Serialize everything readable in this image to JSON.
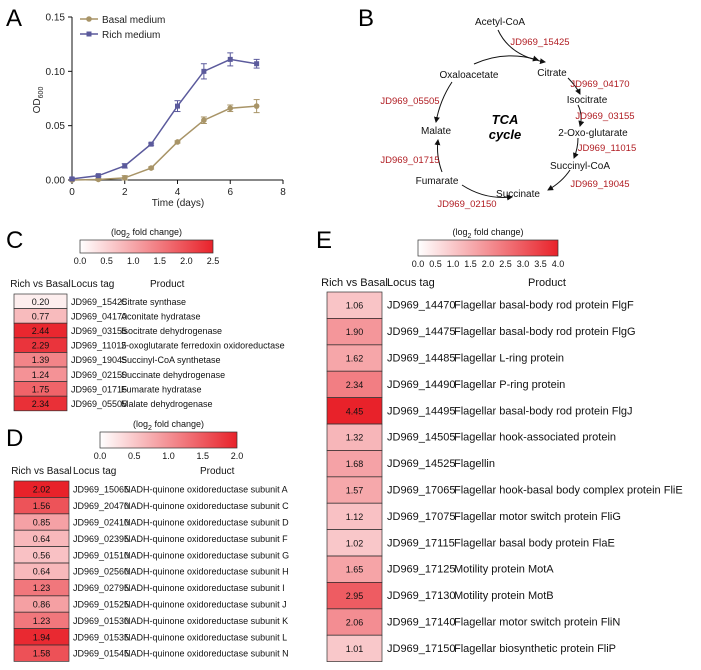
{
  "panel_labels": {
    "a": "A",
    "b": "B",
    "c": "C",
    "d": "D",
    "e": "E"
  },
  "chart_data": [
    {
      "type": "line",
      "xlabel": "Time (days)",
      "ylabel": "OD",
      "ylabel_sub": "600",
      "xlim": [
        0,
        8
      ],
      "ylim": [
        0,
        0.15
      ],
      "xticks": [
        "0",
        "2",
        "4",
        "6",
        "8"
      ],
      "yticks": [
        "0.00",
        "0.05",
        "0.10",
        "0.15"
      ],
      "x": [
        0,
        1,
        2,
        3,
        4,
        5,
        6,
        7
      ],
      "legend": "top-left",
      "series": [
        {
          "name": "Basal medium",
          "color": "#a89467",
          "values": [
            0.0,
            0.0005,
            0.002,
            0.011,
            0.035,
            0.055,
            0.066,
            0.068
          ],
          "err": [
            0.001,
            0.001,
            0.002,
            0.001,
            0.001,
            0.003,
            0.003,
            0.006
          ]
        },
        {
          "name": "Rich medium",
          "color": "#5b5a9c",
          "values": [
            0.001,
            0.004,
            0.013,
            0.033,
            0.068,
            0.1,
            0.111,
            0.107
          ],
          "err": [
            0.001,
            0.001,
            0.002,
            0.001,
            0.005,
            0.007,
            0.006,
            0.004
          ]
        }
      ]
    }
  ],
  "tca": {
    "center": [
      "TCA",
      "cycle"
    ],
    "metabolites": [
      "Acetyl-CoA",
      "Citrate",
      "Isocitrate",
      "2-Oxo-glutarate",
      "Succinyl-CoA",
      "Succinate",
      "Fumarate",
      "Malate",
      "Oxaloacetate"
    ],
    "enzymes": [
      "JD969_15425",
      "JD969_04170",
      "JD969_03155",
      "JD969_11015",
      "JD969_19045",
      "JD969_02150",
      "JD969_01715",
      "JD969_05505"
    ]
  },
  "heat_color": "#e8222a",
  "panel_c": {
    "scale_title": "(log",
    "scale_sub": "2",
    "scale_title_end": " fold change)",
    "scale_ticks": [
      "0.0",
      "0.5",
      "1.0",
      "1.5",
      "2.0",
      "2.5"
    ],
    "scale_max": 2.5,
    "headers": [
      "Rich vs Basal",
      "Locus tag",
      "Product"
    ],
    "rows": [
      {
        "value": "0.20",
        "locus": "JD969_15425",
        "product": "Citrate synthase"
      },
      {
        "value": "0.77",
        "locus": "JD969_04170",
        "product": "Aconitate hydratase"
      },
      {
        "value": "2.44",
        "locus": "JD969_03155",
        "product": "Isocitrate dehydrogenase"
      },
      {
        "value": "2.29",
        "locus": "JD969_11015",
        "product": "2-oxoglutarate ferredoxin oxidoreductase"
      },
      {
        "value": "1.39",
        "locus": "JD969_19045",
        "product": "Succinyl-CoA synthetase"
      },
      {
        "value": "1.24",
        "locus": "JD969_02150",
        "product": "Succinate dehydrogenase"
      },
      {
        "value": "1.75",
        "locus": "JD969_01715",
        "product": "Fumarate hydratase"
      },
      {
        "value": "2.34",
        "locus": "JD969_05505",
        "product": "Malate dehydrogenase"
      }
    ]
  },
  "panel_d": {
    "scale_title": "(log",
    "scale_sub": "2",
    "scale_title_end": " fold change)",
    "scale_ticks": [
      "0.0",
      "0.5",
      "1.0",
      "1.5",
      "2.0"
    ],
    "scale_max": 2.0,
    "headers": [
      "Rich vs Basal",
      "Locus tag",
      "Product"
    ],
    "rows": [
      {
        "value": "2.02",
        "locus": "JD969_15065",
        "product": "NADH-quinone oxidoreductase subunit A"
      },
      {
        "value": "1.56",
        "locus": "JD969_20470",
        "product": "NADH-quinone oxidoreductase subunit C"
      },
      {
        "value": "0.85",
        "locus": "JD969_02410",
        "product": "NADH-quinone oxidoreductase subunit D"
      },
      {
        "value": "0.64",
        "locus": "JD969_02395",
        "product": "NADH-quinone oxidoreductase subunit F"
      },
      {
        "value": "0.56",
        "locus": "JD969_01510",
        "product": "NADH-quinone oxidoreductase subunit G"
      },
      {
        "value": "0.64",
        "locus": "JD969_02560",
        "product": "NADH-quinone oxidoreductase subunit H"
      },
      {
        "value": "1.23",
        "locus": "JD969_02795",
        "product": "NADH-quinone oxidoreductase subunit I"
      },
      {
        "value": "0.86",
        "locus": "JD969_01525",
        "product": "NADH-quinone oxidoreductase subunit J"
      },
      {
        "value": "1.23",
        "locus": "JD969_01530",
        "product": "NADH-quinone oxidoreductase subunit K"
      },
      {
        "value": "1.94",
        "locus": "JD969_01535",
        "product": "NADH-quinone oxidoreductase subunit L"
      },
      {
        "value": "1.58",
        "locus": "JD969_01545",
        "product": "NADH-quinone oxidoreductase subunit N"
      }
    ]
  },
  "panel_e": {
    "scale_title": "(log",
    "scale_sub": "2",
    "scale_title_end": " fold change)",
    "scale_ticks": [
      "0.0",
      "0.5",
      "1.0",
      "1.5",
      "2.0",
      "2.5",
      "3.0",
      "3.5",
      "4.0"
    ],
    "scale_max": 4.0,
    "headers": [
      "Rich vs Basal",
      "Locus tag",
      "Product"
    ],
    "rows": [
      {
        "value": "1.06",
        "locus": "JD969_14470",
        "product": "Flagellar basal-body rod protein FlgF"
      },
      {
        "value": "1.90",
        "locus": "JD969_14475",
        "product": "Flagellar basal-body rod protein FlgG"
      },
      {
        "value": "1.62",
        "locus": "JD969_14485",
        "product": "Flagellar L-ring protein"
      },
      {
        "value": "2.34",
        "locus": "JD969_14490",
        "product": "Flagellar P-ring protein"
      },
      {
        "value": "4.45",
        "locus": "JD969_14495",
        "product": "Flagellar basal-body rod protein FlgJ"
      },
      {
        "value": "1.32",
        "locus": "JD969_14505",
        "product": "Flagellar hook-associated protein"
      },
      {
        "value": "1.68",
        "locus": "JD969_14525",
        "product": "Flagellin"
      },
      {
        "value": "1.57",
        "locus": "JD969_17065",
        "product": "Flagellar hook-basal body complex protein FliE"
      },
      {
        "value": "1.12",
        "locus": "JD969_17075",
        "product": "Flagellar motor switch protein FliG"
      },
      {
        "value": "1.02",
        "locus": "JD969_17115",
        "product": "Flagellar basal body protein FlaE"
      },
      {
        "value": "1.65",
        "locus": "JD969_17125",
        "product": "Motility protein MotA"
      },
      {
        "value": "2.95",
        "locus": "JD969_17130",
        "product": "Motility protein MotB"
      },
      {
        "value": "2.06",
        "locus": "JD969_17140",
        "product": "Flagellar motor switch protein FliN"
      },
      {
        "value": "1.01",
        "locus": "JD969_17150",
        "product": "Flagellar biosynthetic protein FliP"
      }
    ]
  }
}
